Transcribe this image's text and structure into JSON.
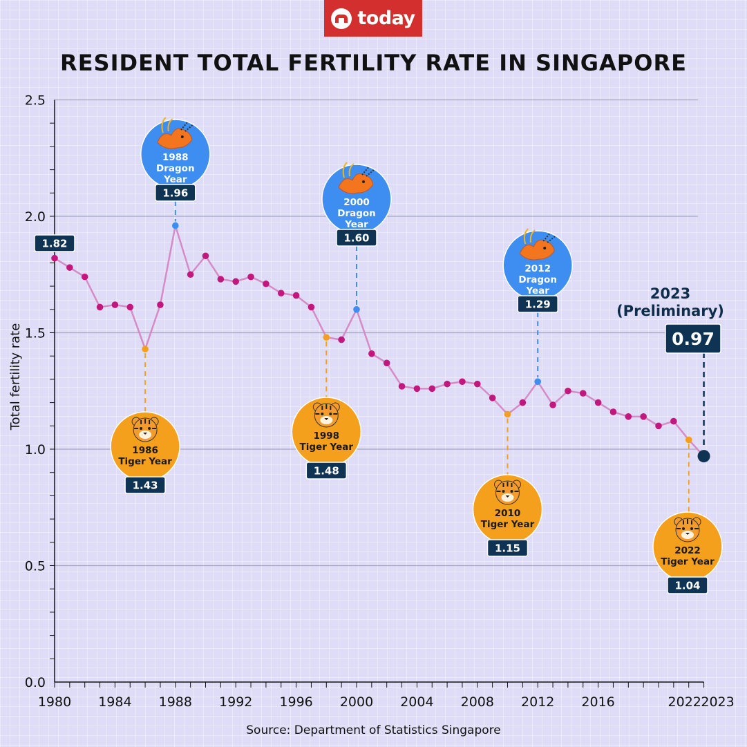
{
  "brand": {
    "logo_text": "today",
    "color": "#d32f2f"
  },
  "title": "RESIDENT TOTAL FERTILITY RATE IN SINGAPORE",
  "source": "Source: Department of Statistics Singapore",
  "preliminary": {
    "year_label": "2023",
    "note": "(Preliminary)"
  },
  "colors": {
    "line": "#d68bc7",
    "point": "#c2187d",
    "dragon": "#3d8ef0",
    "tiger": "#f5a01c",
    "label_bg": "#0f3352",
    "grid": "#a9a7c2",
    "axis": "#111111"
  },
  "chart_data": {
    "type": "line",
    "title": "RESIDENT TOTAL FERTILITY RATE IN SINGAPORE",
    "xlabel": "",
    "ylabel": "Total fertility rate",
    "ylim": [
      0,
      2.5
    ],
    "yticks": [
      "0.0",
      "0.5",
      "1.0",
      "1.5",
      "2.0",
      "2.5"
    ],
    "xticks": [
      "1980",
      "1984",
      "1988",
      "1992",
      "1996",
      "2000",
      "2004",
      "2008",
      "2012",
      "2016",
      "2022",
      "2023"
    ],
    "x": [
      1980,
      1981,
      1982,
      1983,
      1984,
      1985,
      1986,
      1987,
      1988,
      1989,
      1990,
      1991,
      1992,
      1993,
      1994,
      1995,
      1996,
      1997,
      1998,
      1999,
      2000,
      2001,
      2002,
      2003,
      2004,
      2005,
      2006,
      2007,
      2008,
      2009,
      2010,
      2011,
      2012,
      2013,
      2014,
      2015,
      2016,
      2017,
      2018,
      2019,
      2020,
      2021,
      2022,
      2023
    ],
    "values": [
      1.82,
      1.78,
      1.74,
      1.61,
      1.62,
      1.61,
      1.43,
      1.62,
      1.96,
      1.75,
      1.83,
      1.73,
      1.72,
      1.74,
      1.71,
      1.67,
      1.66,
      1.61,
      1.48,
      1.47,
      1.6,
      1.41,
      1.37,
      1.27,
      1.26,
      1.26,
      1.28,
      1.29,
      1.28,
      1.22,
      1.15,
      1.2,
      1.29,
      1.19,
      1.25,
      1.24,
      1.2,
      1.16,
      1.14,
      1.14,
      1.1,
      1.12,
      1.04,
      0.97
    ],
    "annotations": [
      {
        "year": 1980,
        "value_label": "1.82",
        "kind": "plain"
      },
      {
        "year": 1986,
        "value_label": "1.43",
        "kind": "tiger",
        "text": [
          "1986",
          "Tiger Year"
        ]
      },
      {
        "year": 1988,
        "value_label": "1.96",
        "kind": "dragon",
        "text": [
          "1988",
          "Dragon",
          "Year"
        ]
      },
      {
        "year": 1998,
        "value_label": "1.48",
        "kind": "tiger",
        "text": [
          "1998",
          "Tiger Year"
        ]
      },
      {
        "year": 2000,
        "value_label": "1.60",
        "kind": "dragon",
        "text": [
          "2000",
          "Dragon",
          "Year"
        ]
      },
      {
        "year": 2010,
        "value_label": "1.15",
        "kind": "tiger",
        "text": [
          "2010",
          "Tiger Year"
        ]
      },
      {
        "year": 2012,
        "value_label": "1.29",
        "kind": "dragon",
        "text": [
          "2012",
          "Dragon",
          "Year"
        ]
      },
      {
        "year": 2022,
        "value_label": "1.04",
        "kind": "tiger",
        "text": [
          "2022",
          "Tiger Year"
        ]
      },
      {
        "year": 2023,
        "value_label": "0.97",
        "kind": "final"
      }
    ]
  }
}
